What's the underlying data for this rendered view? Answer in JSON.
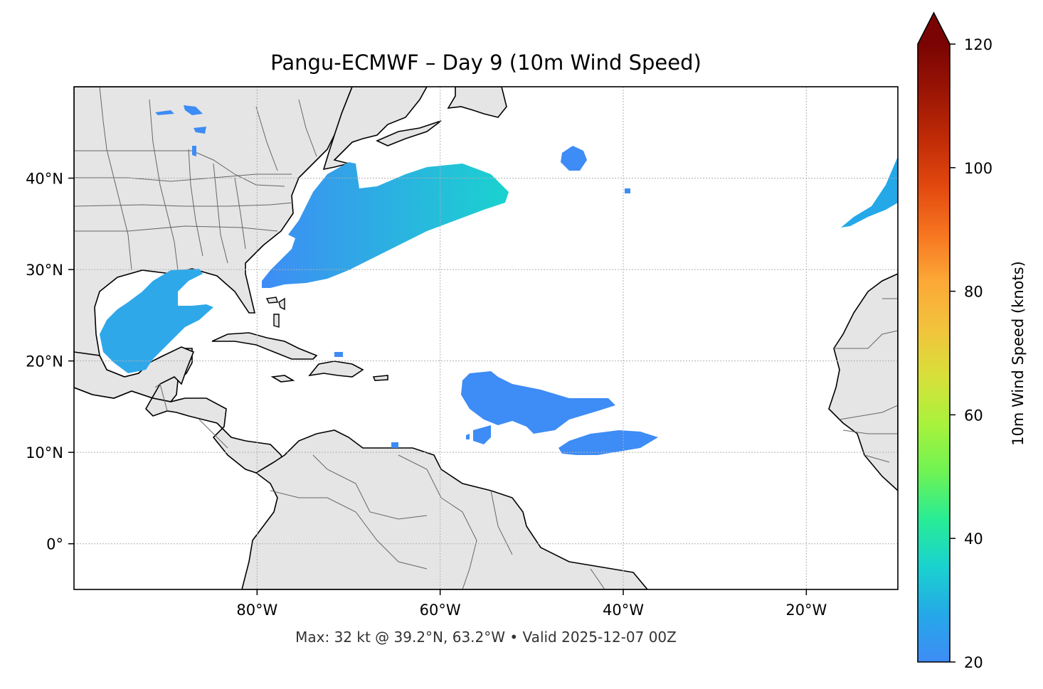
{
  "title": "Pangu-ECMWF – Day 9 (10m Wind Speed)",
  "footer": "Max: 32 kt @ 39.2°N, 63.2°W • Valid 2025-12-07 00Z",
  "map": {
    "lon_range": [
      -100,
      -10
    ],
    "lat_range": [
      -5,
      50
    ],
    "lon_ticks": [
      {
        "value": -80,
        "label": "80°W"
      },
      {
        "value": -60,
        "label": "60°W"
      },
      {
        "value": -40,
        "label": "40°W"
      },
      {
        "value": -20,
        "label": "20°W"
      }
    ],
    "lat_ticks": [
      {
        "value": 40,
        "label": "40°N"
      },
      {
        "value": 30,
        "label": "30°N"
      },
      {
        "value": 20,
        "label": "20°N"
      },
      {
        "value": 10,
        "label": "10°N"
      },
      {
        "value": 0,
        "label": "0°"
      }
    ],
    "gridlines": true,
    "land_color": "#e5e5e5",
    "coast_color": "#000000",
    "border_color": "#666666"
  },
  "colorbar": {
    "label": "10m Wind Speed (knots)",
    "range": [
      20,
      120
    ],
    "extend": "max",
    "ticks": [
      {
        "value": 20,
        "label": "20"
      },
      {
        "value": 40,
        "label": "40"
      },
      {
        "value": 60,
        "label": "60"
      },
      {
        "value": 80,
        "label": "80"
      },
      {
        "value": 100,
        "label": "100"
      },
      {
        "value": 120,
        "label": "120"
      }
    ],
    "colormap": [
      "#3e8cf5",
      "#25a8e8",
      "#1ad2cf",
      "#28ec96",
      "#6ff353",
      "#a8f23c",
      "#d7e03a",
      "#f2c33c",
      "#fca937",
      "#f77520",
      "#e2490f",
      "#c02b06",
      "#9a1504",
      "#7a0403"
    ]
  },
  "wind_areas": [
    {
      "name": "Northwest Atlantic band",
      "max_kt": 32
    },
    {
      "name": "Gulf of Mexico",
      "max_kt": 28
    },
    {
      "name": "Central tropical Atlantic",
      "max_kt": 22
    },
    {
      "name": "Tropical Atlantic south",
      "max_kt": 21
    },
    {
      "name": "Northeast Atlantic",
      "max_kt": 27
    },
    {
      "name": "Small mid-Atlantic patch",
      "max_kt": 21
    }
  ]
}
